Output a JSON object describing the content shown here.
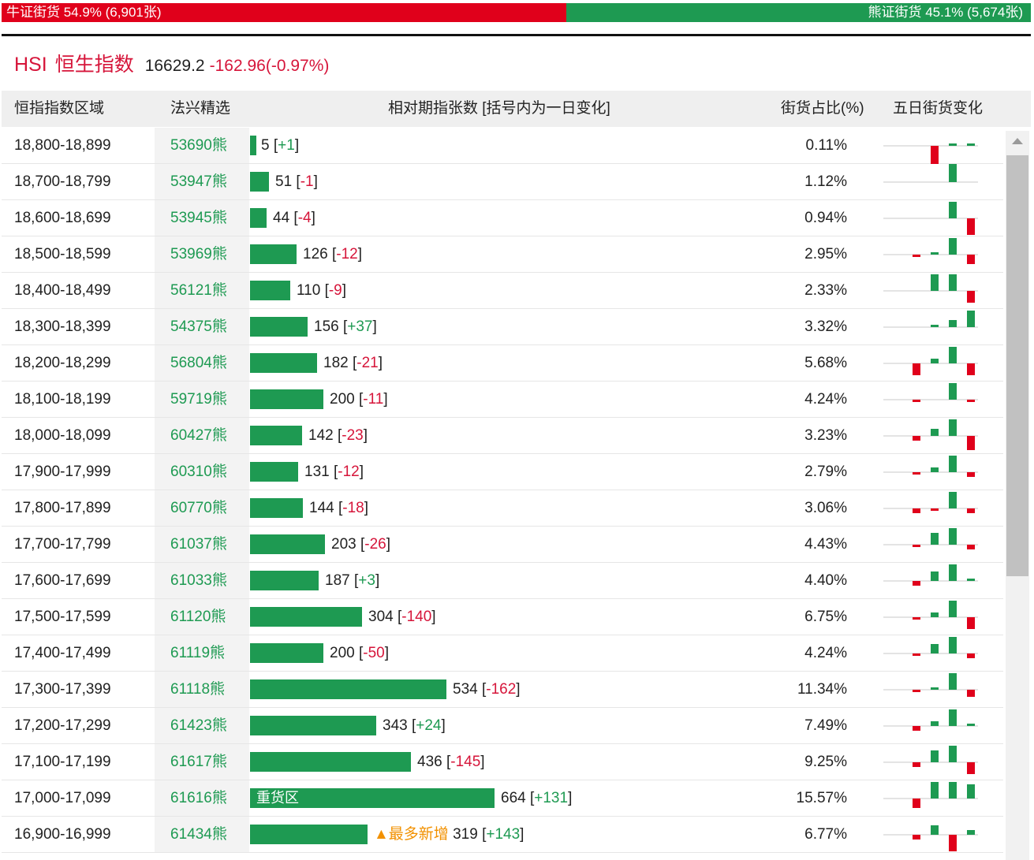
{
  "ratio": {
    "bull_label": "牛证街货 54.9% (6,901张)",
    "bull_fraction": 0.549,
    "bear_label": "熊证街货 45.1% (5,674张)"
  },
  "index": {
    "code": "HSI",
    "name": "恒生指数",
    "price": "16629.2",
    "change": "-162.96(-0.97%)"
  },
  "header": {
    "range": "恒指指数区域",
    "pick": "法兴精选",
    "bars": "相对期指张数 [括号内为一日变化]",
    "pct": "街货占比(%)",
    "five_day": "五日街货变化"
  },
  "colors": {
    "up": "#1e9a52",
    "down": "#e0001b"
  },
  "rows": [
    {
      "range": "18,800-18,899",
      "pick": "53690熊",
      "count": 5,
      "change": "+1",
      "pct": "0.11%",
      "spark": [
        0,
        0,
        -8,
        1,
        1
      ]
    },
    {
      "range": "18,700-18,799",
      "pick": "53947熊",
      "count": 51,
      "change": "-1",
      "pct": "1.12%",
      "spark": [
        0,
        0,
        0,
        8,
        0
      ]
    },
    {
      "range": "18,600-18,699",
      "pick": "53945熊",
      "count": 44,
      "change": "-4",
      "pct": "0.94%",
      "spark": [
        0,
        0,
        0,
        7,
        -7
      ]
    },
    {
      "range": "18,500-18,599",
      "pick": "53969熊",
      "count": 126,
      "change": "-12",
      "pct": "2.95%",
      "spark": [
        0,
        -1,
        1,
        7,
        -4
      ]
    },
    {
      "range": "18,400-18,499",
      "pick": "56121熊",
      "count": 110,
      "change": "-9",
      "pct": "2.33%",
      "spark": [
        0,
        0,
        7,
        7,
        -5
      ]
    },
    {
      "range": "18,300-18,399",
      "pick": "54375熊",
      "count": 156,
      "change": "+37",
      "pct": "3.32%",
      "spark": [
        0,
        0,
        1,
        3,
        7
      ]
    },
    {
      "range": "18,200-18,299",
      "pick": "56804熊",
      "count": 182,
      "change": "-21",
      "pct": "5.68%",
      "spark": [
        0,
        -5,
        2,
        7,
        -5
      ]
    },
    {
      "range": "18,100-18,199",
      "pick": "59719熊",
      "count": 200,
      "change": "-11",
      "pct": "4.24%",
      "spark": [
        0,
        -1,
        0,
        7,
        -1
      ]
    },
    {
      "range": "18,000-18,099",
      "pick": "60427熊",
      "count": 142,
      "change": "-23",
      "pct": "3.23%",
      "spark": [
        0,
        -2,
        3,
        7,
        -6
      ]
    },
    {
      "range": "17,900-17,999",
      "pick": "60310熊",
      "count": 131,
      "change": "-12",
      "pct": "2.79%",
      "spark": [
        0,
        -1,
        2,
        7,
        -2
      ]
    },
    {
      "range": "17,800-17,899",
      "pick": "60770熊",
      "count": 144,
      "change": "-18",
      "pct": "3.06%",
      "spark": [
        0,
        -2,
        -1,
        7,
        -2
      ]
    },
    {
      "range": "17,700-17,799",
      "pick": "61037熊",
      "count": 203,
      "change": "-26",
      "pct": "4.43%",
      "spark": [
        0,
        -1,
        5,
        7,
        -2
      ]
    },
    {
      "range": "17,600-17,699",
      "pick": "61033熊",
      "count": 187,
      "change": "+3",
      "pct": "4.40%",
      "spark": [
        0,
        -2,
        4,
        7,
        1
      ]
    },
    {
      "range": "17,500-17,599",
      "pick": "61120熊",
      "count": 304,
      "change": "-140",
      "pct": "6.75%",
      "spark": [
        0,
        -1,
        2,
        7,
        -5
      ]
    },
    {
      "range": "17,400-17,499",
      "pick": "61119熊",
      "count": 200,
      "change": "-50",
      "pct": "4.24%",
      "spark": [
        0,
        -1,
        4,
        7,
        -2
      ]
    },
    {
      "range": "17,300-17,399",
      "pick": "61118熊",
      "count": 534,
      "change": "-162",
      "pct": "11.34%",
      "spark": [
        0,
        -1,
        1,
        7,
        -3
      ]
    },
    {
      "range": "17,200-17,299",
      "pick": "61423熊",
      "count": 343,
      "change": "+24",
      "pct": "7.49%",
      "spark": [
        0,
        -2,
        2,
        7,
        1
      ]
    },
    {
      "range": "17,100-17,199",
      "pick": "61617熊",
      "count": 436,
      "change": "-145",
      "pct": "9.25%",
      "spark": [
        0,
        -2,
        5,
        7,
        -5
      ]
    },
    {
      "range": "17,000-17,099",
      "pick": "61616熊",
      "count": 664,
      "change": "+131",
      "pct": "15.57%",
      "spark": [
        0,
        -4,
        7,
        7,
        6
      ]
    },
    {
      "range": "16,900-16,999",
      "pick": "61434熊",
      "count": 319,
      "change": "+143",
      "pct": "6.77%",
      "spark": [
        0,
        -2,
        4,
        -7,
        2
      ]
    }
  ],
  "tags": {
    "heavy": "重货区",
    "most_new": "▲最多新增"
  },
  "heavy_row": 18,
  "most_new_row": 19
}
